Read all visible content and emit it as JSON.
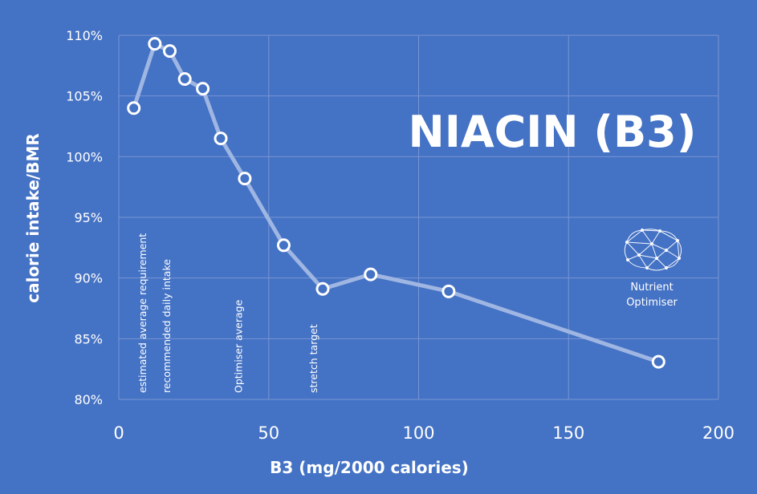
{
  "chart_data": {
    "type": "line",
    "title": "NIACIN (B3)",
    "xlabel": "B3 (mg/2000 calories)",
    "ylabel": "calorie intake/BMR",
    "xlim": [
      0,
      200
    ],
    "ylim": [
      80,
      110
    ],
    "xticks": [
      0,
      50,
      100,
      150,
      200
    ],
    "xtick_labels": [
      "0",
      "50",
      "100",
      "150",
      "200"
    ],
    "yticks": [
      80,
      85,
      90,
      95,
      100,
      105,
      110
    ],
    "ytick_labels": [
      "80%",
      "85%",
      "90%",
      "95%",
      "100%",
      "105%",
      "110%"
    ],
    "grid": true,
    "series": [
      {
        "x": [
          5,
          12,
          17,
          22,
          28,
          34,
          42,
          55,
          68,
          84,
          110,
          180
        ],
        "y": [
          104.0,
          109.3,
          108.7,
          106.4,
          105.6,
          101.5,
          98.2,
          92.7,
          89.1,
          90.3,
          88.9,
          83.1
        ]
      }
    ],
    "annotations": [
      {
        "x": 8,
        "text": "estimated average requirement"
      },
      {
        "x": 16,
        "text": "recommended daily intake"
      },
      {
        "x": 40,
        "text": "Optimiser average"
      },
      {
        "x": 65,
        "text": "stretch target"
      }
    ]
  },
  "logo": {
    "line1": "Nutrient",
    "line2": "Optimiser",
    "icon": "brain-network-icon"
  },
  "colors": {
    "background": "#4472c4",
    "line": "#9fb6e3",
    "marker_fill": "#4472c4",
    "marker_stroke": "#ffffff",
    "grid": "#7996d4"
  }
}
